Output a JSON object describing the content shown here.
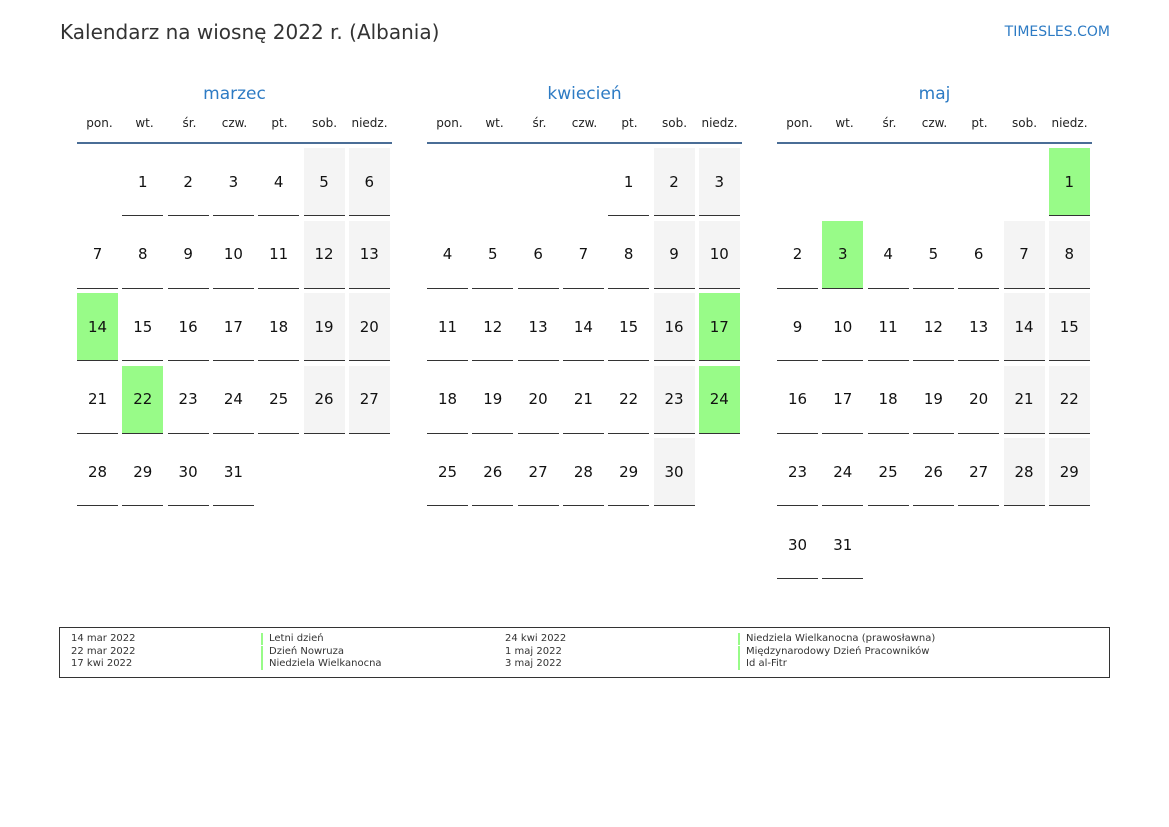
{
  "title": "Kalendarz na wiosnę 2022 r. (Albania)",
  "brand": "TIMESLES.COM",
  "weekdays": [
    "pon.",
    "wt.",
    "śr.",
    "czw.",
    "pt.",
    "sob.",
    "niedz."
  ],
  "colors": {
    "holiday": "#98fb88",
    "weekend": "#f4f4f4",
    "accent": "#2d7bc4"
  },
  "months": [
    {
      "name": "marzec",
      "weeks": [
        [
          null,
          1,
          2,
          3,
          4,
          5,
          6
        ],
        [
          7,
          8,
          9,
          10,
          11,
          12,
          13
        ],
        [
          14,
          15,
          16,
          17,
          18,
          19,
          20
        ],
        [
          21,
          22,
          23,
          24,
          25,
          26,
          27
        ],
        [
          28,
          29,
          30,
          31,
          null,
          null,
          null
        ]
      ],
      "holidays": [
        14,
        22
      ]
    },
    {
      "name": "kwiecień",
      "weeks": [
        [
          null,
          null,
          null,
          null,
          1,
          2,
          3
        ],
        [
          4,
          5,
          6,
          7,
          8,
          9,
          10
        ],
        [
          11,
          12,
          13,
          14,
          15,
          16,
          17
        ],
        [
          18,
          19,
          20,
          21,
          22,
          23,
          24
        ],
        [
          25,
          26,
          27,
          28,
          29,
          30,
          null
        ]
      ],
      "holidays": [
        17,
        24
      ]
    },
    {
      "name": "maj",
      "weeks": [
        [
          null,
          null,
          null,
          null,
          null,
          null,
          1
        ],
        [
          2,
          3,
          4,
          5,
          6,
          7,
          8
        ],
        [
          9,
          10,
          11,
          12,
          13,
          14,
          15
        ],
        [
          16,
          17,
          18,
          19,
          20,
          21,
          22
        ],
        [
          23,
          24,
          25,
          26,
          27,
          28,
          29
        ],
        [
          30,
          31,
          null,
          null,
          null,
          null,
          null
        ]
      ],
      "holidays": [
        1,
        3
      ]
    }
  ],
  "legend": [
    {
      "date": "14 mar 2022",
      "name": "Letni dzień"
    },
    {
      "date": "22 mar 2022",
      "name": "Dzień Nowruza"
    },
    {
      "date": "17 kwi 2022",
      "name": "Niedziela Wielkanocna"
    },
    {
      "date": "24 kwi 2022",
      "name": "Niedziela Wielkanocna (prawosławna)"
    },
    {
      "date": "1 maj 2022",
      "name": "Międzynarodowy Dzień Pracowników"
    },
    {
      "date": "3 maj 2022",
      "name": "Id al-Fitr"
    }
  ]
}
